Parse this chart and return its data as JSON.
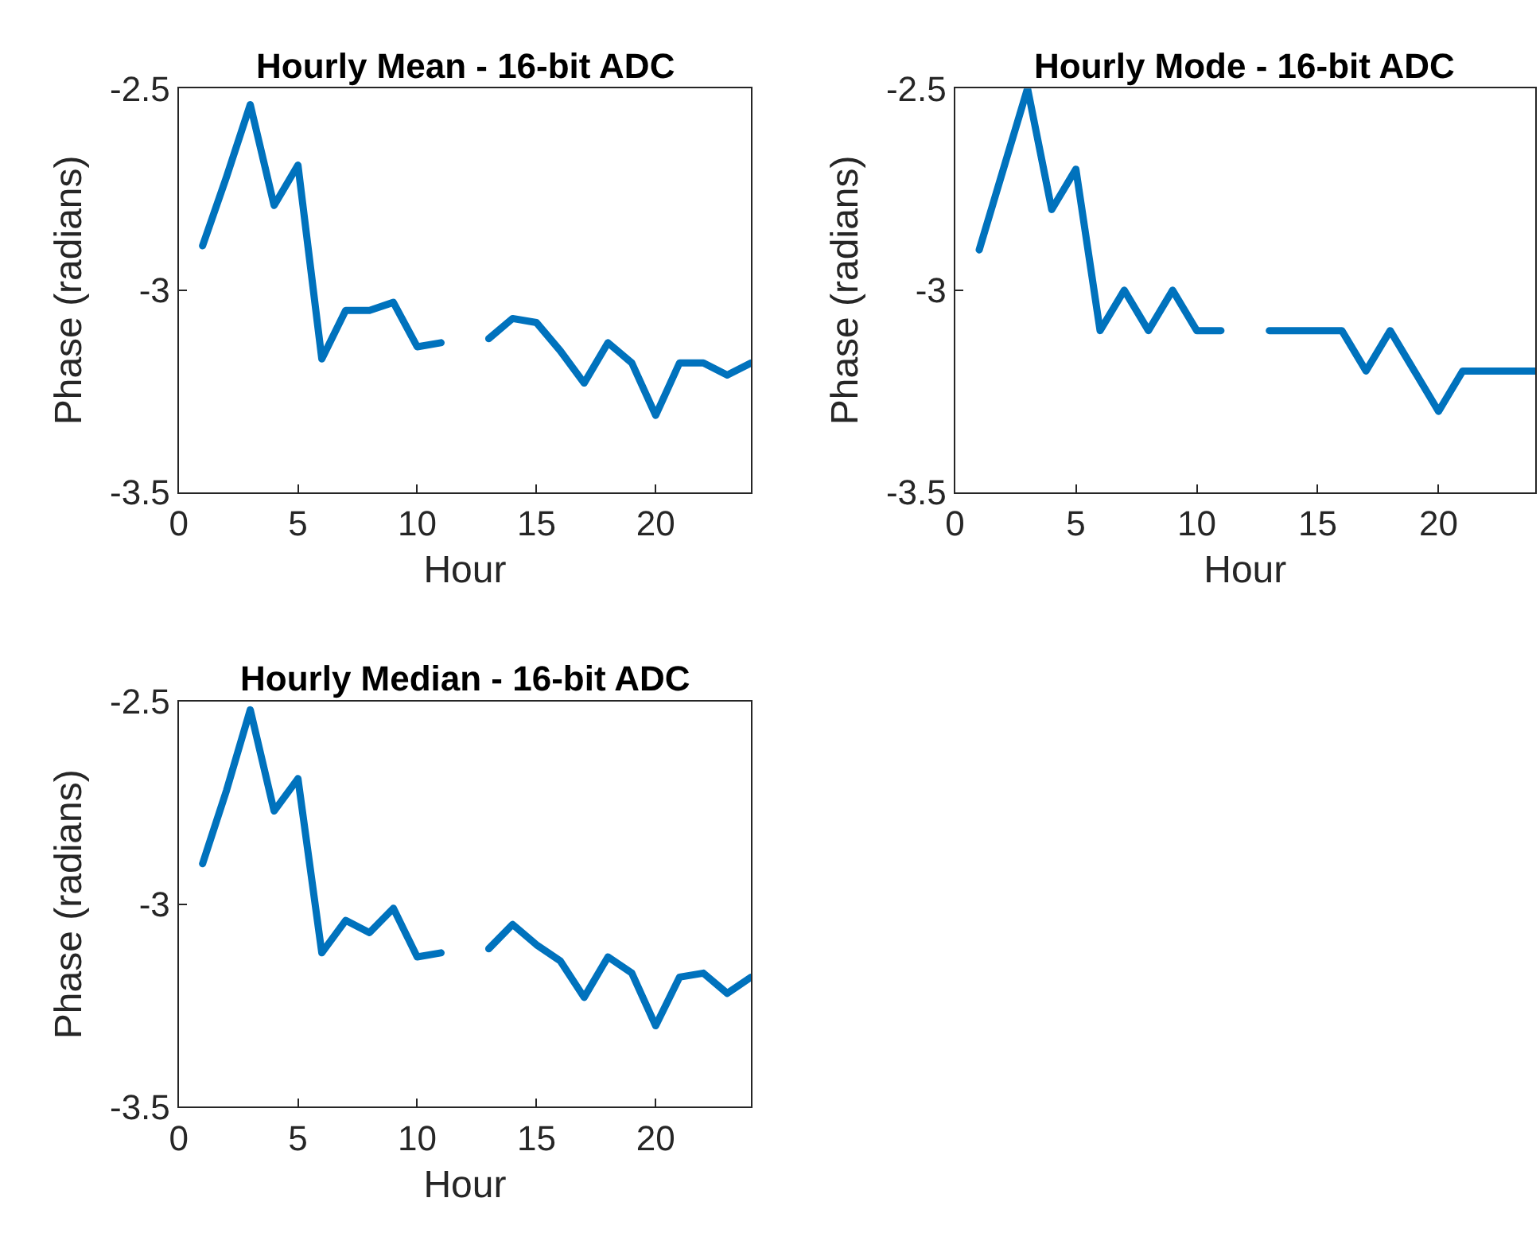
{
  "chart_data": [
    {
      "type": "line",
      "title": "Hourly Mean - 16-bit ADC",
      "xlabel": "Hour",
      "ylabel": "Phase (radians)",
      "x": [
        1,
        2,
        3,
        4,
        5,
        6,
        7,
        8,
        9,
        10,
        11,
        12,
        13,
        14,
        15,
        16,
        17,
        18,
        19,
        20,
        21,
        22,
        23,
        24
      ],
      "xlim": [
        0,
        24
      ],
      "xticks": [
        0,
        5,
        10,
        15,
        20
      ],
      "ylim": [
        -3.5,
        -2.5
      ],
      "yticks": [
        -3.5,
        -3,
        -2.5
      ],
      "color": "#0072bd",
      "values": [
        -2.89,
        -2.72,
        -2.54,
        -2.79,
        -2.69,
        -3.17,
        -3.05,
        -3.05,
        -3.03,
        -3.14,
        -3.13,
        null,
        -3.12,
        -3.07,
        -3.08,
        -3.15,
        -3.23,
        -3.13,
        -3.18,
        -3.31,
        -3.18,
        -3.18,
        -3.21,
        -3.18
      ]
    },
    {
      "type": "line",
      "title": "Hourly Mode - 16-bit ADC",
      "xlabel": "Hour",
      "ylabel": "Phase (radians)",
      "x": [
        1,
        2,
        3,
        4,
        5,
        6,
        7,
        8,
        9,
        10,
        11,
        12,
        13,
        14,
        15,
        16,
        17,
        18,
        19,
        20,
        21,
        22,
        23,
        24
      ],
      "xlim": [
        0,
        24
      ],
      "xticks": [
        0,
        5,
        10,
        15,
        20
      ],
      "ylim": [
        -3.5,
        -2.5
      ],
      "yticks": [
        -3.5,
        -3,
        -2.5
      ],
      "color": "#0072bd",
      "values": [
        -2.9,
        -2.7,
        -2.5,
        -2.8,
        -2.7,
        -3.1,
        -3.0,
        -3.1,
        -3.0,
        -3.1,
        -3.1,
        null,
        -3.1,
        -3.1,
        -3.1,
        -3.1,
        -3.2,
        -3.1,
        -3.2,
        -3.3,
        -3.2,
        -3.2,
        -3.2,
        -3.2
      ]
    },
    {
      "type": "line",
      "title": "Hourly Median - 16-bit ADC",
      "xlabel": "Hour",
      "ylabel": "Phase (radians)",
      "x": [
        1,
        2,
        3,
        4,
        5,
        6,
        7,
        8,
        9,
        10,
        11,
        12,
        13,
        14,
        15,
        16,
        17,
        18,
        19,
        20,
        21,
        22,
        23,
        24
      ],
      "xlim": [
        0,
        24
      ],
      "xticks": [
        0,
        5,
        10,
        15,
        20
      ],
      "ylim": [
        -3.5,
        -2.5
      ],
      "yticks": [
        -3.5,
        -3,
        -2.5
      ],
      "color": "#0072bd",
      "values": [
        -2.9,
        -2.72,
        -2.52,
        -2.77,
        -2.69,
        -3.12,
        -3.04,
        -3.07,
        -3.01,
        -3.13,
        -3.12,
        null,
        -3.11,
        -3.05,
        -3.1,
        -3.14,
        -3.23,
        -3.13,
        -3.17,
        -3.3,
        -3.18,
        -3.17,
        -3.22,
        -3.18
      ]
    }
  ]
}
